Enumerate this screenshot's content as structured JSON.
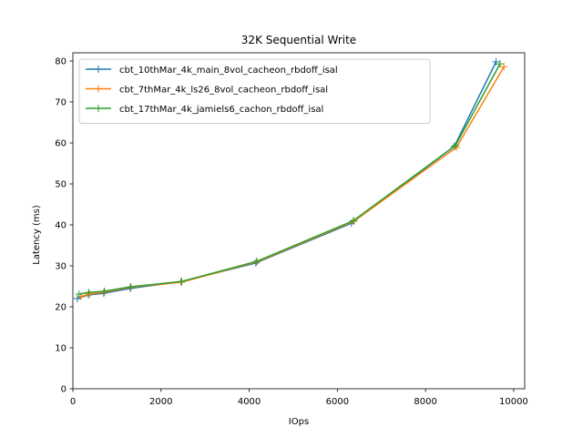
{
  "chart_data": {
    "type": "line",
    "title": "32K  Sequential Write",
    "xlabel": "IOps",
    "ylabel": "Latency (ms)",
    "xlim": [
      0,
      10250
    ],
    "ylim": [
      0,
      82
    ],
    "xticks": [
      0,
      2000,
      4000,
      6000,
      8000,
      10000
    ],
    "yticks": [
      0,
      10,
      20,
      30,
      40,
      50,
      60,
      70,
      80
    ],
    "grid": false,
    "legend_position": "upper-left",
    "marker": "plus",
    "series": [
      {
        "name": "cbt_10thMar_4k_main_8vol_cacheon_rbdoff_isal",
        "color": "#1f77b4",
        "points": [
          [
            100,
            22.0
          ],
          [
            350,
            22.9
          ],
          [
            700,
            23.3
          ],
          [
            1300,
            24.5
          ],
          [
            2450,
            26.1
          ],
          [
            4150,
            30.7
          ],
          [
            6320,
            40.4
          ],
          [
            8650,
            59.1
          ],
          [
            9600,
            79.8
          ]
        ]
      },
      {
        "name": "cbt_7thMar_4k_ls26_8vol_cacheon_rbdoff_isal",
        "color": "#ff7f0e",
        "points": [
          [
            180,
            22.5
          ],
          [
            380,
            23.1
          ],
          [
            720,
            23.6
          ],
          [
            1320,
            24.8
          ],
          [
            2460,
            26.0
          ],
          [
            4180,
            31.0
          ],
          [
            6380,
            40.9
          ],
          [
            8700,
            58.9
          ],
          [
            9780,
            78.6
          ]
        ]
      },
      {
        "name": "cbt_17thMar_4k_jamiels6_cachon_rbdoff_isal",
        "color": "#2ca02c",
        "points": [
          [
            140,
            23.1
          ],
          [
            360,
            23.5
          ],
          [
            710,
            23.8
          ],
          [
            1310,
            24.9
          ],
          [
            2470,
            26.2
          ],
          [
            4170,
            31.1
          ],
          [
            6360,
            41.0
          ],
          [
            8680,
            59.4
          ],
          [
            9690,
            79.3
          ]
        ]
      }
    ]
  }
}
